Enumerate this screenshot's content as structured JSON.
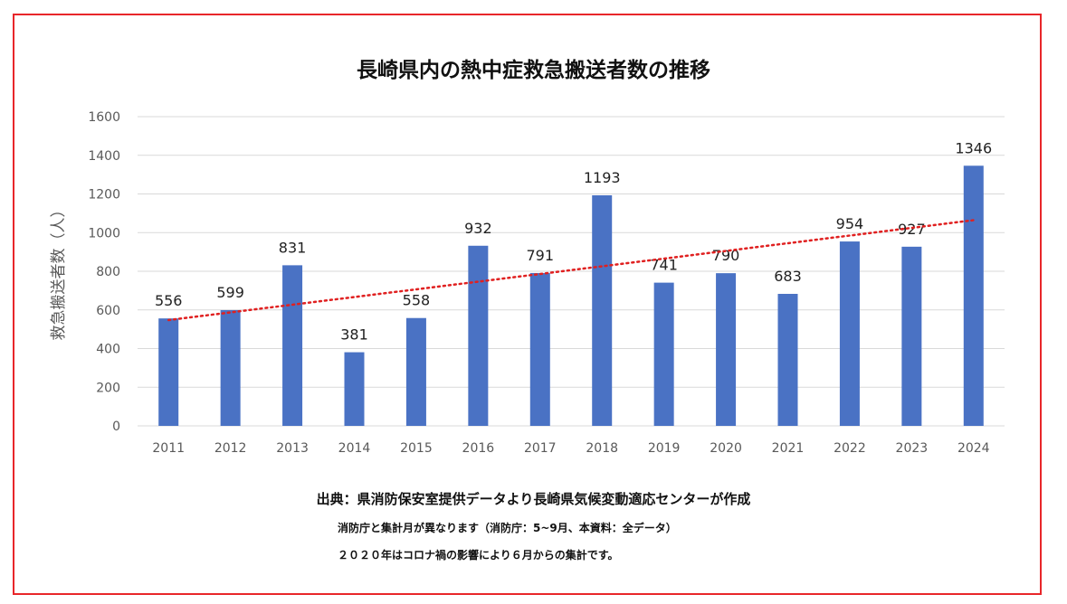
{
  "chart_data": {
    "type": "bar",
    "title": "長崎県内の熱中症救急搬送者数の推移",
    "xlabel": "",
    "ylabel": "救急搬送者数（人）",
    "categories": [
      "2011",
      "2012",
      "2013",
      "2014",
      "2015",
      "2016",
      "2017",
      "2018",
      "2019",
      "2020",
      "2021",
      "2022",
      "2023",
      "2024"
    ],
    "values": [
      556,
      599,
      831,
      381,
      558,
      932,
      791,
      1193,
      741,
      790,
      683,
      954,
      927,
      1346
    ],
    "ylim": [
      0,
      1600
    ],
    "yticks": [
      0,
      200,
      400,
      600,
      800,
      1000,
      1200,
      1400,
      1600
    ],
    "grid": true,
    "trendline": "linear",
    "colors": {
      "bar": "#4a72c4",
      "trend": "#e02020",
      "grid": "#d9d9d9"
    }
  },
  "footer": {
    "source": "出典：県消防保安室提供データより長崎県気候変動適応センターが作成",
    "note1": "消防庁と集計月が異なります（消防庁：5~9月、本資料：全データ）",
    "note2": "２０２０年はコロナ禍の影響により６月からの集計です。"
  }
}
